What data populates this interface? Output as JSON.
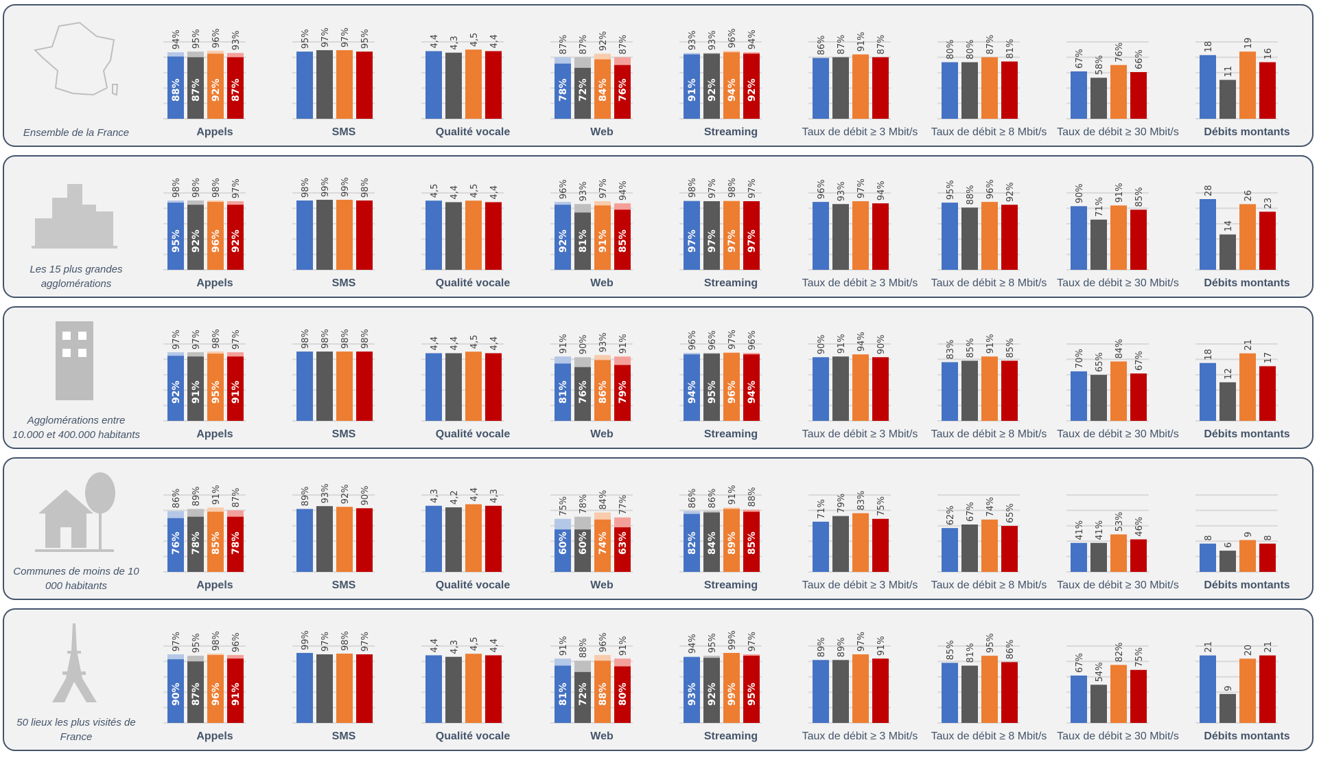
{
  "chart_data": {
    "type": "bar",
    "operator_colors": [
      "#4472C4",
      "#595959",
      "#ED7D31",
      "#C00000"
    ],
    "operator_light_colors": [
      "#B4C7E7",
      "#BFBFBF",
      "#F8CBAD",
      "#F4A09A"
    ],
    "grid": true,
    "categories": [
      {
        "title": "Appels",
        "unit": "%",
        "ylim": [
          0,
          100
        ]
      },
      {
        "title": "SMS",
        "unit": "%",
        "ylim": [
          0,
          100
        ]
      },
      {
        "title": "Qualité vocale",
        "unit": "",
        "ylim": [
          0,
          4.6
        ]
      },
      {
        "title": "Web",
        "unit": "%",
        "ylim": [
          0,
          100
        ]
      },
      {
        "title": "Streaming",
        "unit": "%",
        "ylim": [
          0,
          100
        ]
      },
      {
        "title": "Taux de débit ≥ 3 Mbit/s",
        "unit": "%",
        "ylim": [
          0,
          100
        ]
      },
      {
        "title": "Taux de débit ≥ 8 Mbit/s",
        "unit": "%",
        "ylim": [
          0,
          100
        ]
      },
      {
        "title": "Taux de débit ≥ 30 Mbit/s",
        "unit": "%",
        "ylim": [
          0,
          100
        ]
      },
      {
        "title": "Débits montants",
        "unit": "",
        "ylim": [
          0,
          20
        ]
      }
    ],
    "rows": [
      {
        "label": "Ensemble de la France",
        "icon": "france-map-icon",
        "dm_ylim": [
          0,
          20
        ],
        "series": [
          {
            "values": [
              94,
              95,
              96,
              93
            ],
            "inner": [
              88,
              87,
              92,
              87
            ]
          },
          {
            "values": [
              95,
              97,
              97,
              95
            ]
          },
          {
            "values": [
              4.4,
              4.3,
              4.5,
              4.4
            ]
          },
          {
            "values": [
              87,
              87,
              92,
              87
            ],
            "inner": [
              78,
              72,
              84,
              76
            ]
          },
          {
            "values": [
              93,
              93,
              96,
              94
            ],
            "inner": [
              91,
              92,
              94,
              92
            ]
          },
          {
            "values": [
              86,
              87,
              91,
              87
            ]
          },
          {
            "values": [
              80,
              80,
              87,
              81
            ]
          },
          {
            "values": [
              67,
              58,
              76,
              66
            ]
          },
          {
            "values": [
              18,
              11,
              19,
              16
            ]
          }
        ]
      },
      {
        "label": "Les 15 plus grandes agglomérations",
        "icon": "city-skyline-icon",
        "dm_ylim": [
          0,
          28
        ],
        "series": [
          {
            "values": [
              98,
              98,
              98,
              97
            ],
            "inner": [
              95,
              92,
              96,
              92
            ]
          },
          {
            "values": [
              98,
              99,
              99,
              98
            ]
          },
          {
            "values": [
              4.5,
              4.4,
              4.5,
              4.4
            ]
          },
          {
            "values": [
              96,
              93,
              97,
              94
            ],
            "inner": [
              92,
              81,
              91,
              85
            ]
          },
          {
            "values": [
              98,
              97,
              98,
              97
            ],
            "inner": [
              97,
              97,
              97,
              97
            ]
          },
          {
            "values": [
              96,
              93,
              97,
              94
            ]
          },
          {
            "values": [
              95,
              88,
              96,
              92
            ]
          },
          {
            "values": [
              90,
              71,
              91,
              85
            ]
          },
          {
            "values": [
              28,
              14,
              26,
              23
            ]
          }
        ]
      },
      {
        "label": "Agglomérations entre 10.000 et 400.000 habitants",
        "icon": "office-building-icon",
        "dm_ylim": [
          0,
          22
        ],
        "series": [
          {
            "values": [
              97,
              97,
              98,
              97
            ],
            "inner": [
              92,
              91,
              95,
              91
            ]
          },
          {
            "values": [
              98,
              98,
              98,
              98
            ]
          },
          {
            "values": [
              4.4,
              4.4,
              4.5,
              4.4
            ]
          },
          {
            "values": [
              91,
              90,
              93,
              91
            ],
            "inner": [
              81,
              76,
              86,
              79
            ]
          },
          {
            "values": [
              96,
              96,
              97,
              96
            ],
            "inner": [
              94,
              95,
              96,
              94
            ]
          },
          {
            "values": [
              90,
              91,
              94,
              90
            ]
          },
          {
            "values": [
              83,
              85,
              91,
              85
            ]
          },
          {
            "values": [
              70,
              65,
              84,
              67
            ]
          },
          {
            "values": [
              18,
              12,
              21,
              17
            ]
          }
        ]
      },
      {
        "label": "Communes de moins de 10 000 habitants",
        "icon": "house-tree-icon",
        "dm_ylim": [
          0,
          20
        ],
        "series": [
          {
            "values": [
              86,
              89,
              91,
              87
            ],
            "inner": [
              76,
              78,
              85,
              78
            ]
          },
          {
            "values": [
              89,
              93,
              92,
              90
            ]
          },
          {
            "values": [
              4.3,
              4.2,
              4.4,
              4.3
            ]
          },
          {
            "values": [
              75,
              78,
              84,
              77
            ],
            "inner": [
              60,
              60,
              74,
              63
            ]
          },
          {
            "values": [
              86,
              86,
              91,
              88
            ],
            "inner": [
              82,
              84,
              89,
              85
            ]
          },
          {
            "values": [
              71,
              79,
              83,
              75
            ]
          },
          {
            "values": [
              62,
              67,
              74,
              65
            ]
          },
          {
            "values": [
              41,
              41,
              53,
              46
            ]
          },
          {
            "values": [
              8,
              6,
              9,
              8
            ]
          }
        ]
      },
      {
        "label": "50 lieux les plus visités de France",
        "icon": "eiffel-tower-icon",
        "dm_ylim": [
          0,
          22
        ],
        "series": [
          {
            "values": [
              97,
              95,
              98,
              96
            ],
            "inner": [
              90,
              87,
              96,
              91
            ]
          },
          {
            "values": [
              99,
              97,
              98,
              97
            ]
          },
          {
            "values": [
              4.4,
              4.3,
              4.5,
              4.4
            ]
          },
          {
            "values": [
              91,
              88,
              96,
              91
            ],
            "inner": [
              81,
              72,
              88,
              80
            ]
          },
          {
            "values": [
              94,
              95,
              99,
              97
            ],
            "inner": [
              93,
              92,
              99,
              95
            ]
          },
          {
            "values": [
              89,
              89,
              97,
              91
            ]
          },
          {
            "values": [
              85,
              81,
              95,
              86
            ]
          },
          {
            "values": [
              67,
              54,
              82,
              75
            ]
          },
          {
            "values": [
              21,
              9,
              20,
              21
            ]
          }
        ]
      }
    ]
  }
}
